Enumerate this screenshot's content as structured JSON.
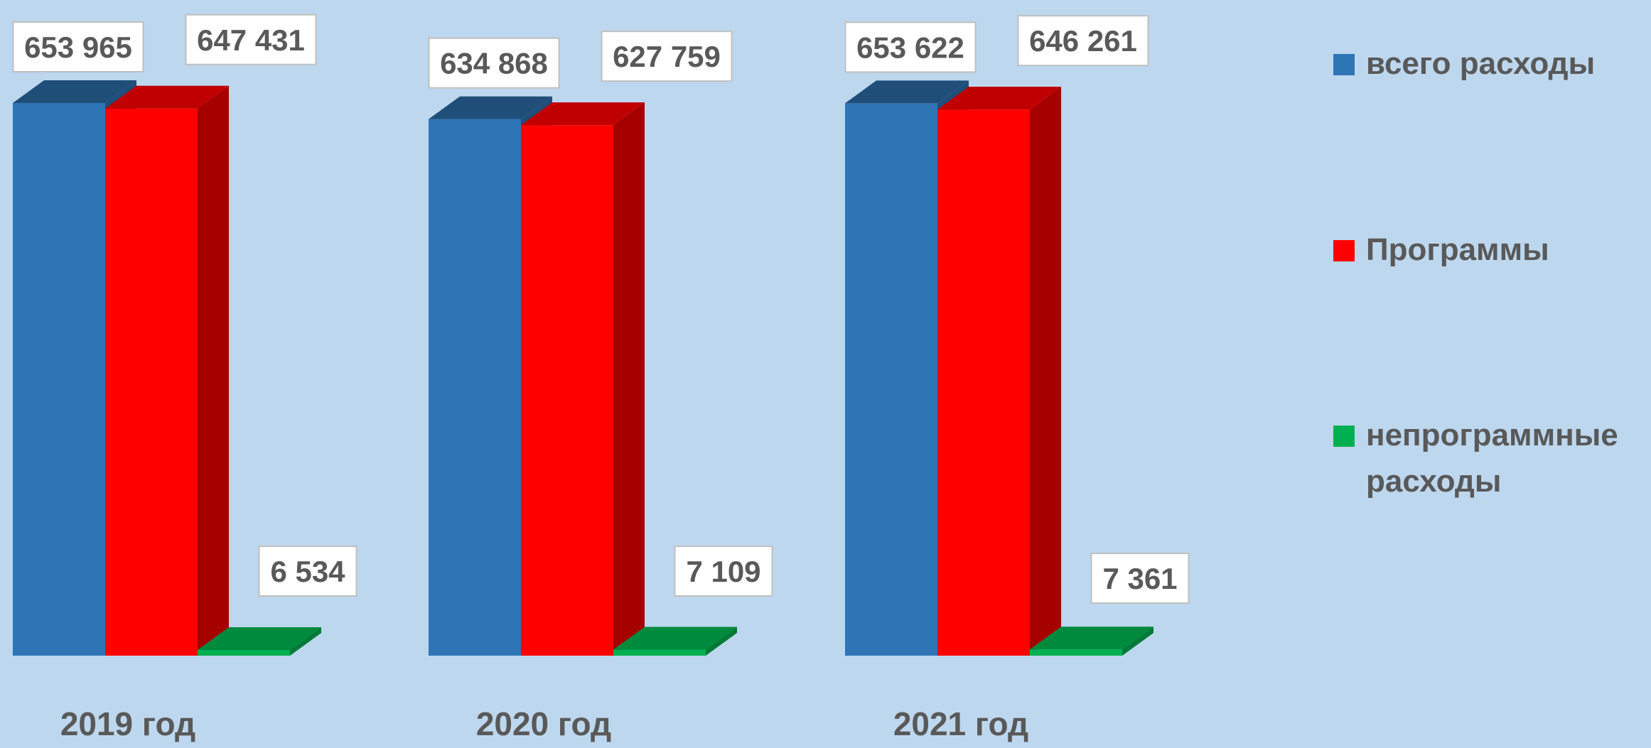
{
  "chart_data": {
    "type": "bar",
    "title": "",
    "xlabel": "",
    "ylabel": "",
    "ylim": [
      0,
      700000
    ],
    "grid": false,
    "legend_position": "right",
    "three_d": true,
    "categories": [
      "2019 год",
      "2020 год",
      "2021 год"
    ],
    "series": [
      {
        "name": "всего расходы",
        "values": [
          653965,
          634868,
          653622
        ],
        "labels": [
          "653 965",
          "634 868",
          "653 622"
        ],
        "color": "#2E75B6",
        "top_color": "#1F4E79",
        "side_color": "#1F4E79"
      },
      {
        "name": "Программы",
        "values": [
          647431,
          627759,
          646261
        ],
        "labels": [
          "647 431",
          "627 759",
          "646 261"
        ],
        "color": "#FF0000",
        "top_color": "#C00000",
        "side_color": "#A50000"
      },
      {
        "name": "непрограммные расходы",
        "name_lines": [
          "непрограммные",
          "расходы"
        ],
        "values": [
          6534,
          7109,
          7361
        ],
        "labels": [
          "6 534",
          "7 109",
          "7 361"
        ],
        "color": "#00B050",
        "top_color": "#008A3E",
        "side_color": "#007A35"
      }
    ]
  },
  "colors": {
    "background": "#BDD7EE",
    "text": "#595959",
    "label_box": "#FFFFFF",
    "label_border": "#BFBFBF"
  }
}
